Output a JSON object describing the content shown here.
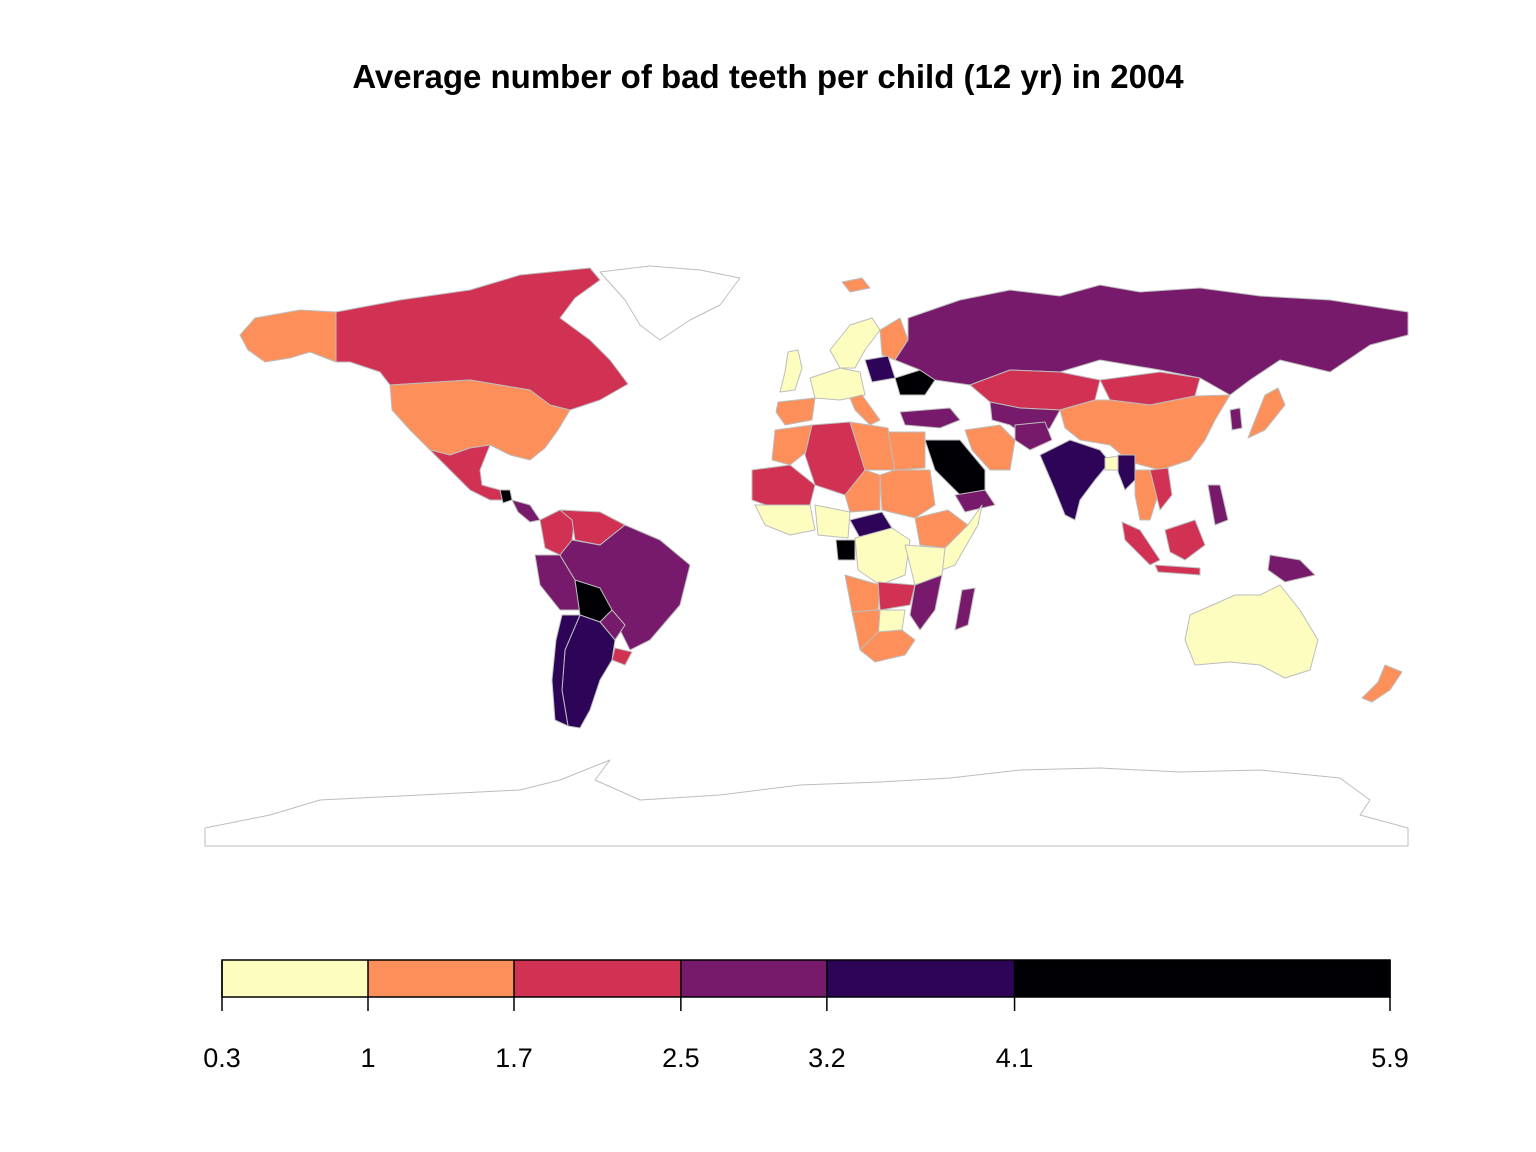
{
  "title": "Average number of bad teeth per child (12 yr) in 2004",
  "legend": {
    "breaks": [
      "0.3",
      "1",
      "1.7",
      "2.5",
      "3.2",
      "4.1",
      "5.9"
    ],
    "bins": [
      {
        "from": 0.3,
        "to": 1.0,
        "color": "#fcfdbf"
      },
      {
        "from": 1.0,
        "to": 1.7,
        "color": "#fc8f5a"
      },
      {
        "from": 1.7,
        "to": 2.5,
        "color": "#d13153"
      },
      {
        "from": 2.5,
        "to": 3.2,
        "color": "#771a6c"
      },
      {
        "from": 3.2,
        "to": 4.1,
        "color": "#2e0458"
      },
      {
        "from": 4.1,
        "to": 5.9,
        "color": "#000004"
      }
    ]
  },
  "colors": {
    "no_data": "#ffffff",
    "border": "#bdbdbd"
  },
  "regions": [
    {
      "name": "Canada",
      "bin": 2
    },
    {
      "name": "Alaska",
      "bin": 1
    },
    {
      "name": "United States",
      "bin": 1
    },
    {
      "name": "Mexico",
      "bin": 2
    },
    {
      "name": "Guatemala",
      "bin": 5
    },
    {
      "name": "Central America",
      "bin": 3
    },
    {
      "name": "Colombia",
      "bin": 2
    },
    {
      "name": "Venezuela",
      "bin": 2
    },
    {
      "name": "Peru",
      "bin": 3
    },
    {
      "name": "Brazil",
      "bin": 3
    },
    {
      "name": "Bolivia",
      "bin": 5
    },
    {
      "name": "Paraguay",
      "bin": 3
    },
    {
      "name": "Uruguay",
      "bin": 2
    },
    {
      "name": "Argentina",
      "bin": 4
    },
    {
      "name": "Chile",
      "bin": 4
    },
    {
      "name": "Greenland",
      "bin": null
    },
    {
      "name": "Iceland",
      "bin": 1
    },
    {
      "name": "United Kingdom",
      "bin": 0
    },
    {
      "name": "Scandinavia",
      "bin": 0
    },
    {
      "name": "Finland",
      "bin": 1
    },
    {
      "name": "Western Europe",
      "bin": 0
    },
    {
      "name": "Iberia",
      "bin": 1
    },
    {
      "name": "Italy",
      "bin": 1
    },
    {
      "name": "Poland",
      "bin": 4
    },
    {
      "name": "Ukraine",
      "bin": 5
    },
    {
      "name": "Turkey",
      "bin": 3
    },
    {
      "name": "Russia",
      "bin": 3
    },
    {
      "name": "Kazakhstan",
      "bin": 2
    },
    {
      "name": "Mongolia",
      "bin": 2
    },
    {
      "name": "China",
      "bin": 1
    },
    {
      "name": "Japan",
      "bin": 1
    },
    {
      "name": "Korea",
      "bin": 3
    },
    {
      "name": "Central Asia",
      "bin": 3
    },
    {
      "name": "Iran",
      "bin": 1
    },
    {
      "name": "Saudi Arabia",
      "bin": 5
    },
    {
      "name": "Yemen",
      "bin": 3
    },
    {
      "name": "Afghanistan",
      "bin": 3
    },
    {
      "name": "India",
      "bin": 4
    },
    {
      "name": "Bangladesh",
      "bin": 0
    },
    {
      "name": "Myanmar",
      "bin": 4
    },
    {
      "name": "Southeast Asia",
      "bin": 1
    },
    {
      "name": "Vietnam",
      "bin": 2
    },
    {
      "name": "Philippines",
      "bin": 3
    },
    {
      "name": "Sumatra",
      "bin": 2
    },
    {
      "name": "Java",
      "bin": 2
    },
    {
      "name": "Borneo",
      "bin": 2
    },
    {
      "name": "New Guinea",
      "bin": 3
    },
    {
      "name": "Australia",
      "bin": 0
    },
    {
      "name": "New Zealand",
      "bin": 1
    },
    {
      "name": "Morocco",
      "bin": 1
    },
    {
      "name": "Algeria",
      "bin": 2
    },
    {
      "name": "Mali / Mauritania",
      "bin": 2
    },
    {
      "name": "Libya",
      "bin": 1
    },
    {
      "name": "Egypt",
      "bin": 1
    },
    {
      "name": "Chad",
      "bin": 1
    },
    {
      "name": "Sudan",
      "bin": 1
    },
    {
      "name": "West Africa",
      "bin": 0
    },
    {
      "name": "Nigeria",
      "bin": 0
    },
    {
      "name": "Central African Republic",
      "bin": 4
    },
    {
      "name": "Gabon",
      "bin": 5
    },
    {
      "name": "Ethiopia",
      "bin": 1
    },
    {
      "name": "Somalia",
      "bin": 0
    },
    {
      "name": "DR Congo",
      "bin": 0
    },
    {
      "name": "Tanzania",
      "bin": 0
    },
    {
      "name": "Angola",
      "bin": 1
    },
    {
      "name": "Zambia",
      "bin": 2
    },
    {
      "name": "Mozambique",
      "bin": 3
    },
    {
      "name": "Botswana",
      "bin": 0
    },
    {
      "name": "Namibia",
      "bin": 1
    },
    {
      "name": "South Africa",
      "bin": 1
    },
    {
      "name": "Madagascar",
      "bin": 3
    },
    {
      "name": "Antarctica",
      "bin": null
    }
  ]
}
